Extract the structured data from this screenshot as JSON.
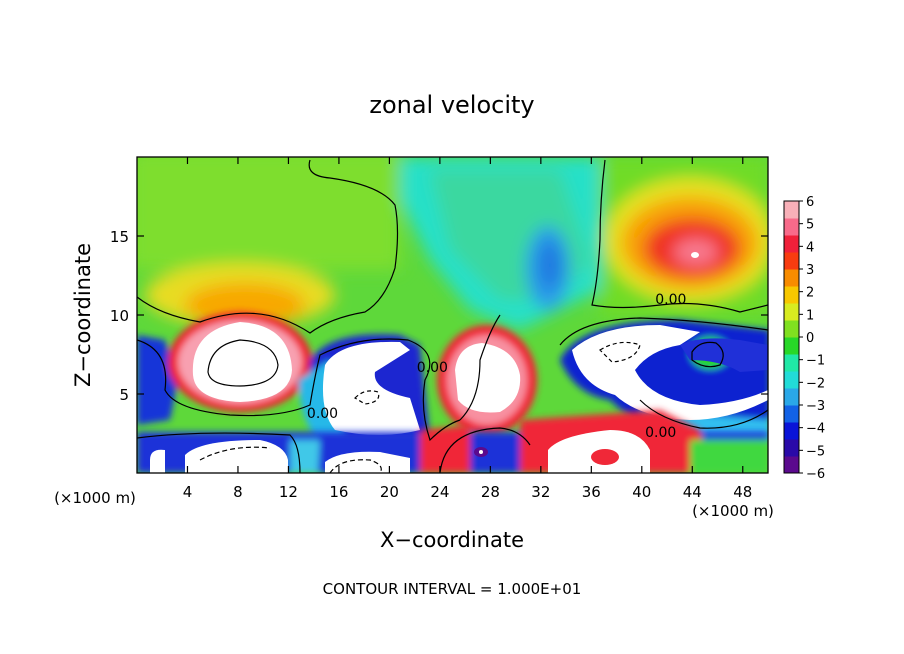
{
  "chart_data": {
    "type": "heatmap",
    "title": "zonal velocity",
    "xlabel": "X−coordinate",
    "ylabel": "Z−coordinate",
    "x_unit_left": "(×1000 m)",
    "x_unit_right": "(×1000 m)",
    "xlim": [
      0,
      50
    ],
    "ylim": [
      0,
      20
    ],
    "xticks": [
      4,
      8,
      12,
      16,
      20,
      24,
      28,
      32,
      36,
      40,
      44,
      48
    ],
    "yticks": [
      5,
      10,
      15
    ],
    "colorbar": {
      "min": -6,
      "max": 6,
      "ticks": [
        "6",
        "5",
        "4",
        "3",
        "2",
        "1",
        "0",
        "−1",
        "−2",
        "−3",
        "−4",
        "−5",
        "−6"
      ],
      "colors": [
        "#5b0a8e",
        "#2a0aa8",
        "#0a14d8",
        "#1262e6",
        "#2aa8e8",
        "#22dcd8",
        "#20e8a6",
        "#28d828",
        "#80e020",
        "#d8ec20",
        "#f8c800",
        "#f88c00",
        "#f83c10",
        "#f0203a",
        "#f86a8a",
        "#f8b0b8"
      ]
    },
    "contour_labels": [
      {
        "text": "0.00",
        "x": 14.7,
        "z": 3.8
      },
      {
        "text": "0.00",
        "x": 23.4,
        "z": 6.7
      },
      {
        "text": "0.00",
        "x": 42.3,
        "z": 11.0
      },
      {
        "text": "0.00",
        "x": 41.5,
        "z": 2.6
      }
    ],
    "features": [
      {
        "kind": "saturated-positive",
        "x": 9.5,
        "z": 6.8,
        "note": "white core, |u|>6"
      },
      {
        "kind": "saturated-positive",
        "x": 20.0,
        "z": 5.5
      },
      {
        "kind": "saturated-positive",
        "x": 28.0,
        "z": 5.3
      },
      {
        "kind": "saturated-positive",
        "x": 44.0,
        "z": 5.0
      },
      {
        "kind": "max",
        "x": 44.0,
        "z": 13.6,
        "value": 6
      },
      {
        "kind": "min",
        "x": 32.6,
        "z": 12.5,
        "value": -3
      },
      {
        "kind": "min",
        "x": 26.5,
        "z": 1.2,
        "value": -6
      }
    ],
    "footer": "CONTOUR INTERVAL = 1.000E+01"
  }
}
